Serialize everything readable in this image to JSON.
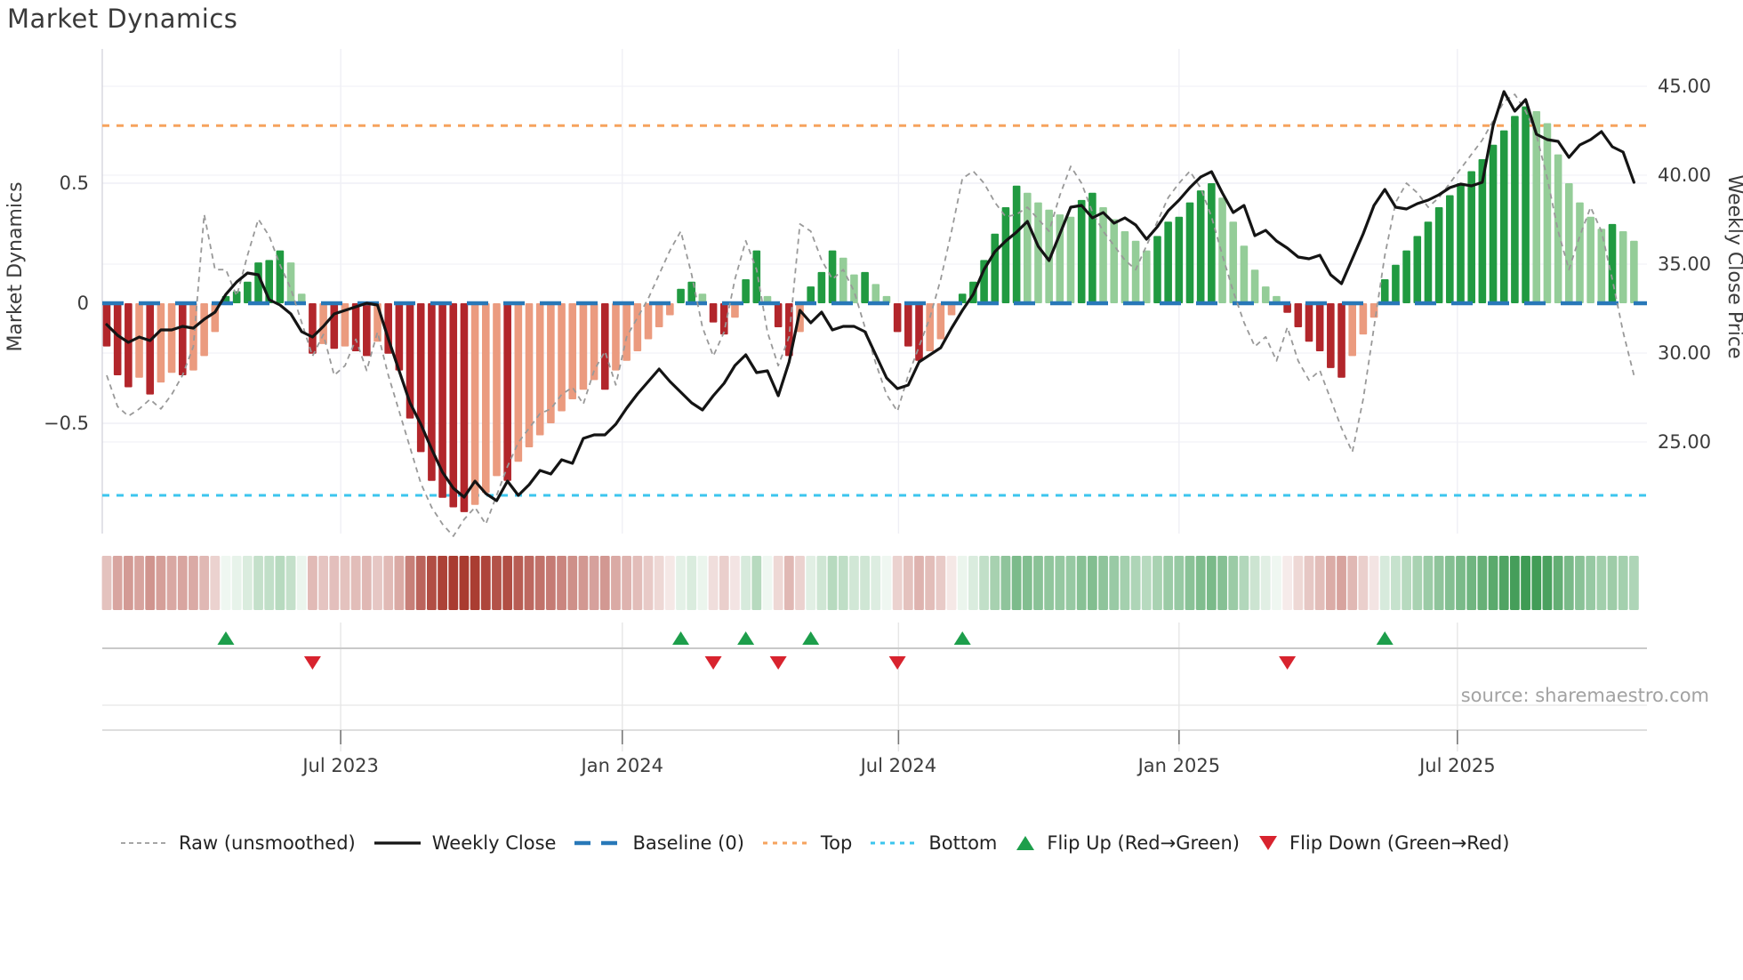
{
  "title": "Market Dynamics",
  "source": "source: sharemaestro.com",
  "legend": [
    {
      "id": "raw",
      "label": "Raw (unsmoothed)"
    },
    {
      "id": "close",
      "label": "Weekly Close"
    },
    {
      "id": "baseline",
      "label": "Baseline (0)"
    },
    {
      "id": "top",
      "label": "Top"
    },
    {
      "id": "bottom",
      "label": "Bottom"
    },
    {
      "id": "flip_up",
      "label": "Flip Up (Red→Green)"
    },
    {
      "id": "flip_down",
      "label": "Flip Down (Green→Red)"
    }
  ],
  "colors": {
    "bar_dark_red": "#b2262b",
    "bar_light_red": "#eb9b7f",
    "bar_dark_green": "#219a41",
    "bar_light_green": "#94cd98",
    "raw_line": "#999999",
    "close_line": "#141414",
    "baseline": "#2878b8",
    "top_line": "#f6a35e",
    "bottom_line": "#3cc5ee",
    "flip_up": "#1d9e4b",
    "flip_down": "#d8232e",
    "heat_red": "#a93b30",
    "heat_green": "#39984f",
    "grid": "#efeff5",
    "spine": "#cfcfd8",
    "panel_line": "#c9c9c9",
    "panel_line_light": "#e6e6e6",
    "axis_line": "#d4d4d4",
    "tick_mark": "#777777",
    "text": "#3c3c3c",
    "muted_text": "#a2a2a2"
  },
  "chart_data": {
    "type": "bar",
    "description": "Weekly market-dynamics oscillator bars with raw overlay (left axis) and weekly close price (right axis)",
    "weeks": 142,
    "left_axis": {
      "title": "Market Dynamics",
      "ticks": [
        {
          "value": 0.5,
          "label": "0.5"
        },
        {
          "value": 0,
          "label": "0"
        },
        {
          "value": -0.5,
          "label": "−0.5"
        }
      ]
    },
    "right_axis": {
      "title": "Weekly Close Price",
      "ticks": [
        {
          "value": 45,
          "label": "45.00"
        },
        {
          "value": 40,
          "label": "40.00"
        },
        {
          "value": 35,
          "label": "35.00"
        },
        {
          "value": 30,
          "label": "30.00"
        },
        {
          "value": 25,
          "label": "25.00"
        }
      ]
    },
    "x_axis": {
      "ticks": [
        {
          "week": 21.6,
          "label": "Jul 2023"
        },
        {
          "week": 47.6,
          "label": "Jan 2024"
        },
        {
          "week": 73.1,
          "label": "Jul 2024"
        },
        {
          "week": 99.0,
          "label": "Jan 2025"
        },
        {
          "week": 124.7,
          "label": "Jul 2025"
        }
      ]
    },
    "baseline": 0,
    "top_threshold": 0.74,
    "bottom_threshold": -0.8,
    "flip_up_weeks": [
      11,
      53,
      59,
      65,
      79,
      118
    ],
    "flip_down_weeks": [
      19,
      56,
      62,
      73,
      109
    ],
    "series": {
      "dynamics_smoothed": [
        -0.18,
        -0.3,
        -0.35,
        -0.31,
        -0.38,
        -0.33,
        -0.29,
        -0.3,
        -0.28,
        -0.22,
        -0.12,
        0.03,
        0.05,
        0.09,
        0.17,
        0.18,
        0.22,
        0.17,
        0.04,
        -0.21,
        -0.17,
        -0.19,
        -0.18,
        -0.2,
        -0.22,
        -0.16,
        -0.21,
        -0.28,
        -0.48,
        -0.62,
        -0.74,
        -0.81,
        -0.85,
        -0.87,
        -0.84,
        -0.79,
        -0.72,
        -0.74,
        -0.66,
        -0.6,
        -0.55,
        -0.5,
        -0.45,
        -0.4,
        -0.36,
        -0.32,
        -0.36,
        -0.28,
        -0.24,
        -0.2,
        -0.15,
        -0.1,
        -0.05,
        0.06,
        0.09,
        0.04,
        -0.08,
        -0.13,
        -0.06,
        0.1,
        0.22,
        0.03,
        -0.1,
        -0.22,
        -0.12,
        0.07,
        0.13,
        0.22,
        0.19,
        0.12,
        0.13,
        0.08,
        0.03,
        -0.12,
        -0.18,
        -0.24,
        -0.2,
        -0.15,
        -0.05,
        0.04,
        0.09,
        0.18,
        0.29,
        0.4,
        0.49,
        0.46,
        0.42,
        0.39,
        0.37,
        0.36,
        0.43,
        0.46,
        0.4,
        0.35,
        0.3,
        0.26,
        0.22,
        0.28,
        0.34,
        0.36,
        0.42,
        0.47,
        0.5,
        0.44,
        0.34,
        0.24,
        0.14,
        0.07,
        0.03,
        -0.04,
        -0.1,
        -0.16,
        -0.2,
        -0.27,
        -0.31,
        -0.22,
        -0.13,
        -0.06,
        0.1,
        0.16,
        0.22,
        0.28,
        0.34,
        0.4,
        0.45,
        0.5,
        0.55,
        0.6,
        0.66,
        0.72,
        0.78,
        0.82,
        0.8,
        0.75,
        0.62,
        0.5,
        0.42,
        0.36,
        0.31,
        0.33,
        0.3,
        0.26
      ],
      "raw": [
        -0.3,
        -0.43,
        -0.47,
        -0.44,
        -0.4,
        -0.44,
        -0.38,
        -0.3,
        -0.18,
        0.37,
        0.14,
        0.14,
        0.03,
        0.2,
        0.35,
        0.28,
        0.16,
        0.06,
        -0.08,
        -0.22,
        -0.13,
        -0.3,
        -0.26,
        -0.15,
        -0.28,
        -0.12,
        -0.3,
        -0.45,
        -0.6,
        -0.75,
        -0.85,
        -0.92,
        -0.97,
        -0.9,
        -0.85,
        -0.92,
        -0.8,
        -0.68,
        -0.58,
        -0.52,
        -0.46,
        -0.44,
        -0.38,
        -0.35,
        -0.42,
        -0.28,
        -0.2,
        -0.34,
        -0.14,
        -0.06,
        0.02,
        0.12,
        0.22,
        0.3,
        0.12,
        -0.1,
        -0.22,
        -0.12,
        0.1,
        0.26,
        0.14,
        -0.12,
        -0.26,
        -0.14,
        0.33,
        0.3,
        0.18,
        0.1,
        0.14,
        0.05,
        -0.1,
        -0.25,
        -0.38,
        -0.45,
        -0.3,
        -0.18,
        -0.06,
        0.1,
        0.3,
        0.52,
        0.55,
        0.5,
        0.42,
        0.36,
        0.37,
        0.4,
        0.35,
        0.3,
        0.45,
        0.57,
        0.5,
        0.38,
        0.3,
        0.24,
        0.18,
        0.14,
        0.24,
        0.34,
        0.44,
        0.5,
        0.55,
        0.48,
        0.36,
        0.2,
        0.05,
        -0.08,
        -0.18,
        -0.14,
        -0.24,
        -0.1,
        -0.24,
        -0.32,
        -0.28,
        -0.4,
        -0.52,
        -0.62,
        -0.4,
        -0.1,
        0.2,
        0.42,
        0.5,
        0.46,
        0.4,
        0.44,
        0.5,
        0.56,
        0.62,
        0.68,
        0.76,
        0.84,
        0.87,
        0.8,
        0.7,
        0.52,
        0.3,
        0.14,
        0.28,
        0.4,
        0.3,
        0.1,
        -0.12,
        -0.3
      ],
      "weekly_close": [
        31.6,
        31.0,
        30.6,
        30.9,
        30.7,
        31.3,
        31.3,
        31.5,
        31.4,
        31.9,
        32.3,
        33.3,
        34.0,
        34.5,
        34.4,
        33.0,
        32.7,
        32.2,
        31.2,
        30.9,
        31.5,
        32.2,
        32.4,
        32.6,
        32.8,
        32.7,
        30.8,
        29.0,
        27.2,
        26.0,
        24.6,
        23.3,
        22.4,
        21.9,
        22.8,
        22.1,
        21.7,
        22.8,
        22.0,
        22.6,
        23.4,
        23.2,
        24.0,
        23.8,
        25.2,
        25.4,
        25.4,
        26.0,
        26.9,
        27.7,
        28.4,
        29.1,
        28.4,
        27.8,
        27.2,
        26.8,
        27.6,
        28.3,
        29.3,
        29.9,
        28.9,
        29.0,
        27.6,
        29.5,
        32.4,
        31.7,
        32.3,
        31.3,
        31.5,
        31.5,
        31.2,
        29.9,
        28.6,
        28.0,
        28.2,
        29.5,
        29.9,
        30.3,
        31.4,
        32.4,
        33.3,
        34.7,
        35.7,
        36.3,
        36.8,
        37.4,
        36.0,
        35.2,
        36.7,
        38.2,
        38.3,
        37.6,
        37.9,
        37.3,
        37.6,
        37.2,
        36.4,
        37.1,
        38.0,
        38.6,
        39.3,
        39.9,
        40.2,
        39.0,
        37.9,
        38.3,
        36.6,
        36.9,
        36.3,
        35.9,
        35.4,
        35.3,
        35.5,
        34.4,
        33.9,
        35.3,
        36.7,
        38.3,
        39.2,
        38.2,
        38.1,
        38.4,
        38.6,
        38.9,
        39.3,
        39.5,
        39.4,
        39.6,
        42.8,
        44.7,
        43.6,
        44.25,
        42.3,
        42.0,
        41.9,
        41.0,
        41.7,
        42.0,
        42.45,
        41.6,
        41.3,
        39.6
      ]
    }
  }
}
